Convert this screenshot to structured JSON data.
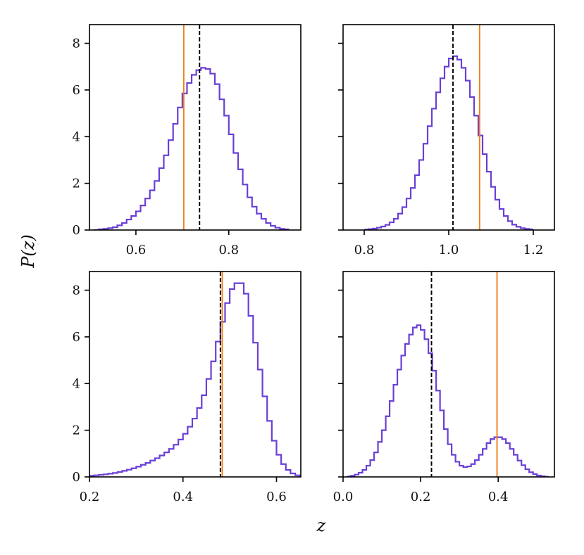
{
  "figure": {
    "xlabel": "z",
    "ylabel": "P(z)"
  },
  "colors": {
    "hist": "#6a3fd6",
    "truth": "#f07f1a",
    "estimate": "#000000",
    "axis": "#000000"
  },
  "chart_data": [
    {
      "type": "step-histogram",
      "panel": "top-left",
      "xlim": [
        0.5,
        0.955
      ],
      "ylim": [
        0,
        8.8
      ],
      "xticks": [
        0.6,
        0.8
      ],
      "xtick_labels": [
        "0.6",
        "0.8"
      ],
      "yticks": [
        0,
        2,
        4,
        6,
        8
      ],
      "ytick_labels": [
        "0",
        "2",
        "4",
        "6",
        "8"
      ],
      "show_yticklabels": true,
      "bin_start": 0.51,
      "bin_width": 0.01,
      "values": [
        0.0,
        0.03,
        0.05,
        0.08,
        0.12,
        0.2,
        0.3,
        0.45,
        0.6,
        0.8,
        1.05,
        1.35,
        1.7,
        2.1,
        2.65,
        3.2,
        3.85,
        4.55,
        5.25,
        5.85,
        6.3,
        6.65,
        6.85,
        6.95,
        6.9,
        6.7,
        6.25,
        5.6,
        4.9,
        4.1,
        3.3,
        2.6,
        1.95,
        1.4,
        1.0,
        0.7,
        0.48,
        0.3,
        0.18,
        0.1,
        0.05,
        0.03
      ],
      "truth_z": 0.703,
      "estimate_z": 0.737
    },
    {
      "type": "step-histogram",
      "panel": "top-right",
      "xlim": [
        0.75,
        1.25
      ],
      "ylim": [
        0,
        8.8
      ],
      "xticks": [
        0.8,
        1.0,
        1.2
      ],
      "xtick_labels": [
        "0.8",
        "1.0",
        "1.2"
      ],
      "yticks": [
        0,
        2,
        4,
        6,
        8
      ],
      "ytick_labels": [
        "0",
        "2",
        "4",
        "6",
        "8"
      ],
      "show_yticklabels": false,
      "bin_start": 0.8,
      "bin_width": 0.01,
      "values": [
        0.02,
        0.04,
        0.06,
        0.1,
        0.15,
        0.22,
        0.33,
        0.48,
        0.7,
        0.98,
        1.35,
        1.8,
        2.35,
        3.0,
        3.7,
        4.45,
        5.2,
        5.9,
        6.5,
        7.0,
        7.35,
        7.45,
        7.3,
        6.95,
        6.4,
        5.7,
        4.9,
        4.05,
        3.25,
        2.5,
        1.85,
        1.3,
        0.9,
        0.6,
        0.38,
        0.23,
        0.14,
        0.08,
        0.05,
        0.03
      ],
      "truth_z": 1.073,
      "estimate_z": 1.01
    },
    {
      "type": "step-histogram",
      "panel": "bottom-left",
      "xlim": [
        0.2,
        0.652
      ],
      "ylim": [
        0,
        8.8
      ],
      "xticks": [
        0.2,
        0.4,
        0.6
      ],
      "xtick_labels": [
        "0.2",
        "0.4",
        "0.6"
      ],
      "yticks": [
        0,
        2,
        4,
        6,
        8
      ],
      "ytick_labels": [
        "0",
        "2",
        "4",
        "6",
        "8"
      ],
      "show_yticklabels": true,
      "bin_start": 0.2,
      "bin_width": 0.01,
      "values": [
        0.05,
        0.07,
        0.09,
        0.11,
        0.14,
        0.17,
        0.21,
        0.26,
        0.31,
        0.37,
        0.44,
        0.52,
        0.6,
        0.7,
        0.8,
        0.92,
        1.05,
        1.2,
        1.38,
        1.6,
        1.85,
        2.15,
        2.5,
        2.95,
        3.5,
        4.2,
        4.95,
        5.8,
        6.65,
        7.45,
        8.05,
        8.3,
        8.3,
        7.85,
        6.9,
        5.75,
        4.6,
        3.45,
        2.4,
        1.55,
        0.95,
        0.55,
        0.3,
        0.15,
        0.07,
        0.03
      ],
      "truth_z": 0.484,
      "estimate_z": 0.48
    },
    {
      "type": "step-histogram",
      "panel": "bottom-right",
      "xlim": [
        0.0,
        0.545
      ],
      "ylim": [
        0,
        8.8
      ],
      "xticks": [
        0.0,
        0.2,
        0.4
      ],
      "xtick_labels": [
        "0.0",
        "0.2",
        "0.4"
      ],
      "yticks": [
        0,
        2,
        4,
        6,
        8
      ],
      "ytick_labels": [
        "0",
        "2",
        "4",
        "6",
        "8"
      ],
      "show_yticklabels": false,
      "bin_start": 0.01,
      "bin_width": 0.01,
      "values": [
        0.02,
        0.05,
        0.1,
        0.18,
        0.3,
        0.48,
        0.72,
        1.05,
        1.5,
        2.0,
        2.6,
        3.25,
        3.95,
        4.6,
        5.2,
        5.7,
        6.1,
        6.4,
        6.5,
        6.3,
        5.9,
        5.3,
        4.55,
        3.7,
        2.85,
        2.05,
        1.4,
        0.95,
        0.65,
        0.48,
        0.42,
        0.45,
        0.55,
        0.72,
        0.95,
        1.2,
        1.45,
        1.62,
        1.7,
        1.7,
        1.62,
        1.45,
        1.2,
        0.95,
        0.7,
        0.5,
        0.33,
        0.2,
        0.12,
        0.06,
        0.03,
        0.01
      ],
      "truth_z": 0.397,
      "estimate_z": 0.228
    }
  ]
}
